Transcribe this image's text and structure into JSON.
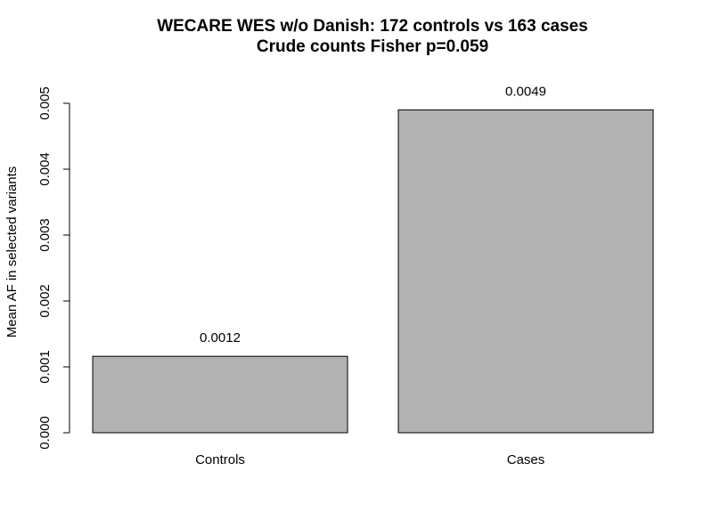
{
  "chart_data": {
    "type": "bar",
    "title": "WECARE WES w/o Danish: 172 controls vs 163 cases",
    "subtitle": "Crude counts Fisher p=0.059",
    "xlabel": "",
    "ylabel": "Mean AF in selected variants",
    "categories": [
      "Controls",
      "Cases"
    ],
    "values": [
      0.00116,
      0.0049
    ],
    "data_labels": [
      "0.0012",
      "0.0049"
    ],
    "ylim": [
      0,
      0.005
    ],
    "yticks": [
      0,
      0.001,
      0.002,
      0.003,
      0.004,
      0.005
    ],
    "ytick_labels": [
      "0.000",
      "0.001",
      "0.002",
      "0.003",
      "0.004",
      "0.005"
    ],
    "bar_color": "#b2b2b2",
    "bar_border_color": "#000000",
    "grid": false,
    "legend": "none"
  }
}
